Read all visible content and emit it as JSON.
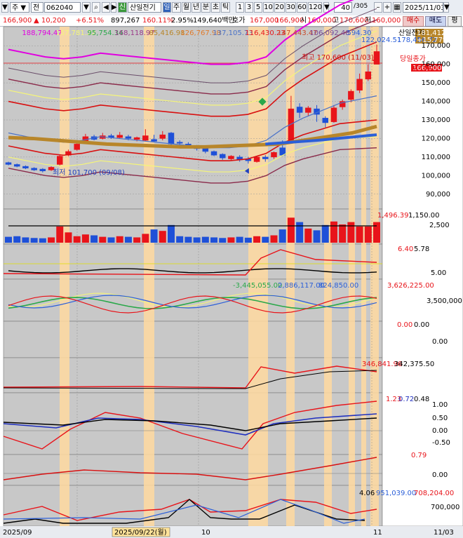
{
  "toolbar": {
    "mode": "주",
    "market": "전",
    "code": "062040",
    "name_badge": "신",
    "name": "산일전기",
    "period_active": "일",
    "periods": [
      "주",
      "월",
      "년",
      "분",
      "초",
      "틱"
    ],
    "intervals": [
      "1",
      "3",
      "5",
      "10",
      "20",
      "30",
      "60",
      "120"
    ],
    "page": "40",
    "page_total": "/305",
    "date": "2025/11/03",
    "buy": "매수",
    "sell": "매도",
    "eval": "평"
  },
  "infobar": {
    "price": "166,900",
    "change": "▲ 10,200",
    "change_pct": "+6.51%",
    "volume": "897,267",
    "vol_pct": "160.11%",
    "turnover": "2.95%",
    "amount": "149,640백만",
    "ask_label": "호가",
    "ask": "167,000",
    "bid": "166,900",
    "open_label": "시",
    "open": "160,000",
    "high_label": "고",
    "high": "170,600",
    "low_label": "저",
    "low": "160,000"
  },
  "price_panel": {
    "ma_values": [
      "188,794.47",
      "157,781.22",
      "95,754.34",
      "168,118.97",
      "85,416.98",
      "126,767.98",
      "137,105.73",
      "116,430.23",
      "147,443.47",
      "106,092.48",
      "594.30"
    ],
    "legend_name": "산일전기",
    "legend_values": [
      "122,024.51",
      "178,456.72"
    ],
    "right_tag_price": "181,412",
    "right_tag_pct": "+15.77%",
    "current_tag": "166,900",
    "current_pct": "6.51%",
    "today_close_label": "당일종가",
    "high_marker": "최고 170,600 (11/03)",
    "low_marker": "최저 101,700 (09/08)",
    "axis": [
      "170,000",
      "160,000",
      "150,000",
      "140,000",
      "130,000",
      "120,000",
      "110,000",
      "100,000",
      "90,000"
    ]
  },
  "volume_panel": {
    "values": [
      "1,496.39",
      "1,150.00"
    ],
    "axis": [
      "2,500"
    ]
  },
  "panel3": {
    "values": [
      "6.40",
      "5.78"
    ],
    "axis": [
      "5.00"
    ]
  },
  "panel4": {
    "values": [
      "-3,445,055.00",
      "2,886,117.00",
      "824,850.00",
      "3,626,225.00"
    ],
    "axis": [
      "3,500,000"
    ]
  },
  "panel5": {
    "values": [
      "0.00",
      "0.00"
    ],
    "axis": [
      "0.00"
    ]
  },
  "panel6": {
    "values": [
      "346,841.96",
      "342,375.50"
    ]
  },
  "panel7": {
    "values": [
      "1.23",
      "0.72",
      "0.48"
    ],
    "axis": [
      "1.00",
      "0.50",
      "0.00",
      "-0.50"
    ]
  },
  "panel8": {
    "values": [
      "0.79"
    ],
    "axis": [
      "0.00"
    ]
  },
  "panel9": {
    "values": [
      "4.06",
      "951,039.00",
      "708,204.00"
    ],
    "axis": [
      "700,000"
    ]
  },
  "xaxis": {
    "labels": [
      "2025/09",
      "10",
      "11",
      "11/03"
    ],
    "cursor_date": "2025/09/22(월)"
  },
  "colors": {
    "up": "#e8141a",
    "down": "#1e50d8",
    "chart_bg": "#c8c8c8",
    "highlight": "#ffd9a0"
  }
}
